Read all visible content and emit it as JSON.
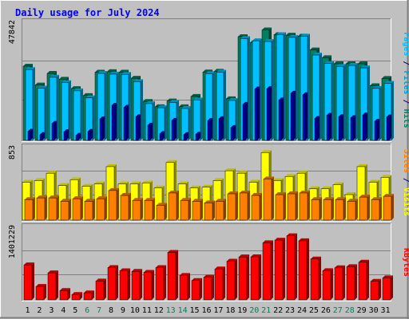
{
  "chart_data": {
    "type": "bar",
    "title": "Daily usage for July 2024",
    "categories": [
      "1",
      "2",
      "3",
      "4",
      "5",
      "6",
      "7",
      "8",
      "9",
      "10",
      "11",
      "12",
      "13",
      "14",
      "15",
      "16",
      "17",
      "18",
      "19",
      "20",
      "21",
      "22",
      "23",
      "24",
      "25",
      "26",
      "27",
      "28",
      "29",
      "30",
      "31"
    ],
    "weekend_days": [
      "6",
      "7",
      "13",
      "14",
      "20",
      "21",
      "27",
      "28"
    ],
    "panels": [
      {
        "id": "hits",
        "ymax": 47842,
        "ymax_label": "47842",
        "ylabel_parts": [
          {
            "text": "Pages",
            "color": "#00c0ff"
          },
          {
            "text": " / ",
            "color": "#000080"
          },
          {
            "text": "Files",
            "color": "#00a0cc"
          },
          {
            "text": " / ",
            "color": "#000080"
          },
          {
            "text": "Hits",
            "color": "#008060"
          }
        ],
        "series": [
          {
            "name": "Hits",
            "color": "#008060",
            "values": [
              30700,
              22900,
              27700,
              25300,
              21400,
              18500,
              28200,
              28400,
              28200,
              25700,
              16100,
              13900,
              16300,
              13900,
              18200,
              28300,
              28600,
              17200,
              42900,
              40400,
              45700,
              43700,
              43500,
              43100,
              37400,
              34200,
              31700,
              31700,
              31700,
              22600,
              25600
            ]
          },
          {
            "name": "Files",
            "color": "#00c0ff",
            "values": [
              29300,
              21600,
              26100,
              23900,
              20500,
              17600,
              27700,
              27400,
              27300,
              24300,
              15200,
              13500,
              15700,
              13200,
              16700,
              27600,
              28200,
              16500,
              42100,
              41200,
              40900,
              43700,
              42600,
              43100,
              35300,
              31800,
              30600,
              31000,
              30000,
              21500,
              23600
            ]
          },
          {
            "name": "Pages",
            "color": "#0000c0",
            "values": [
              3800,
              2400,
              7000,
              3600,
              2100,
              3700,
              8900,
              14500,
              13700,
              9800,
              6300,
              2800,
              8300,
              2400,
              2600,
              8200,
              9000,
              5300,
              14900,
              21300,
              21400,
              16700,
              19500,
              18900,
              9100,
              10400,
              9800,
              9400,
              10500,
              7900,
              9700
            ]
          }
        ]
      },
      {
        "id": "visits",
        "ymax": 853,
        "ymax_label": "853",
        "ylabel_parts": [
          {
            "text": "Sites",
            "color": "#ff8000"
          },
          {
            "text": " / ",
            "color": "#000080"
          },
          {
            "text": "Visits",
            "color": "#ffff00"
          }
        ],
        "series": [
          {
            "name": "Visits",
            "color": "#ffff00",
            "values": [
              460,
              480,
              570,
              420,
              490,
              410,
              440,
              650,
              440,
              440,
              450,
              390,
              700,
              440,
              390,
              400,
              480,
              600,
              570,
              460,
              820,
              480,
              530,
              570,
              380,
              380,
              430,
              310,
              650,
              460,
              520
            ]
          },
          {
            "name": "Sites",
            "color": "#ff8000",
            "values": [
              250,
              270,
              270,
              230,
              260,
              230,
              260,
              360,
              300,
              240,
              240,
              180,
              330,
              240,
              230,
              210,
              230,
              320,
              330,
              300,
              500,
              310,
              320,
              330,
              250,
              250,
              250,
              230,
              280,
              250,
              290
            ]
          }
        ]
      },
      {
        "id": "kbytes",
        "ymax": 1401229,
        "ymax_label": "1401229",
        "ylabel_parts": [
          {
            "text": "KBytes",
            "color": "#ff0000"
          }
        ],
        "series": [
          {
            "name": "KBytes",
            "color": "#ff0000",
            "values": [
              699000,
              268000,
              539000,
              188000,
              107000,
              140000,
              376000,
              644000,
              582000,
              569000,
              550000,
              644000,
              947000,
              488000,
              387000,
              451000,
              617000,
              773000,
              857000,
              860000,
              1140000,
              1193000,
              1280000,
              1180000,
              817000,
              584000,
              640000,
              662000,
              752000,
              371000,
              440000
            ]
          }
        ]
      }
    ]
  }
}
